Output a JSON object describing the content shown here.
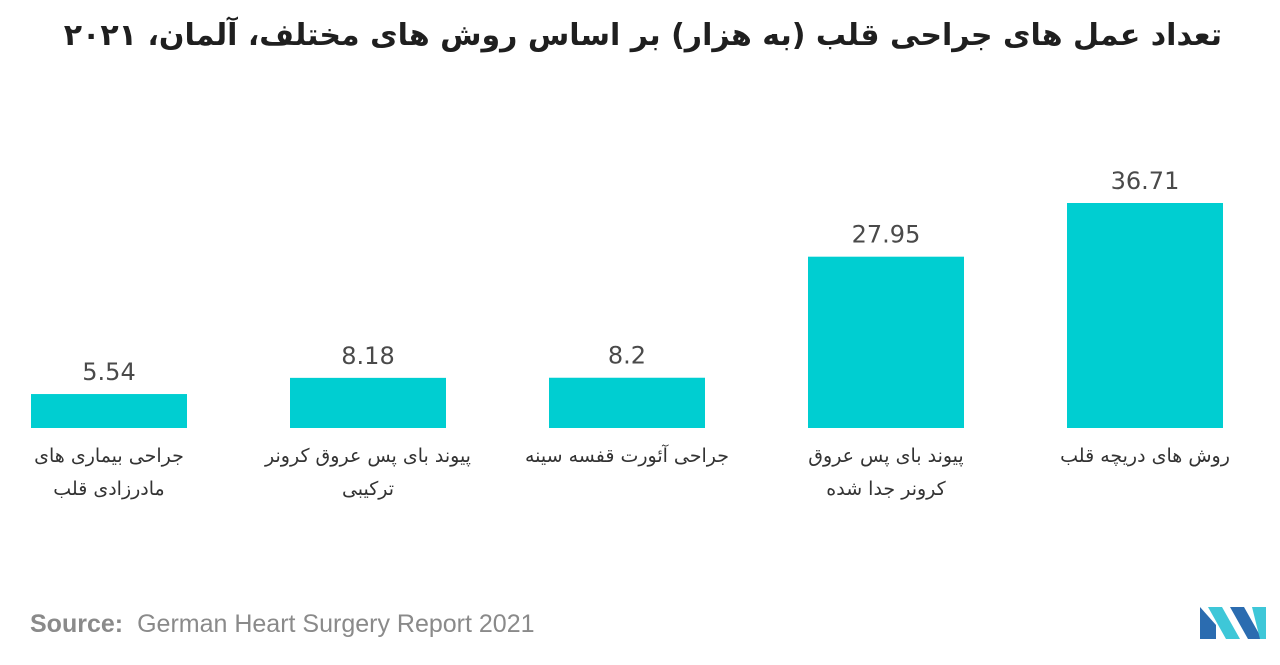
{
  "title": "تعداد عمل های جراحی قلب (به هزار) بر اساس روش های مختلف، آلمان، ۲۰۲۱",
  "chart_data": {
    "type": "bar",
    "categories": [
      [
        "جراحی بیماری های",
        "مادرزادی قلب"
      ],
      [
        "پیوند بای پس عروق کرونر",
        "ترکیبی"
      ],
      [
        "جراحی آئورت قفسه سینه"
      ],
      [
        "پیوند بای پس عروق",
        "کرونر جدا شده"
      ],
      [
        "روش های دریچه قلب"
      ]
    ],
    "values": [
      5.54,
      8.18,
      8.2,
      27.95,
      36.71
    ],
    "value_labels": [
      "5.54",
      "8.18",
      "8.2",
      "27.95",
      "36.71"
    ],
    "bar_color": "#00ced1",
    "grid": false,
    "legend": "none"
  },
  "source": {
    "label": "Source:",
    "text": "German Heart Surgery Report 2021"
  },
  "logo": {
    "icon": "mordor-logo-icon",
    "colors": [
      "#2b6cb0",
      "#3ec7d8"
    ]
  }
}
